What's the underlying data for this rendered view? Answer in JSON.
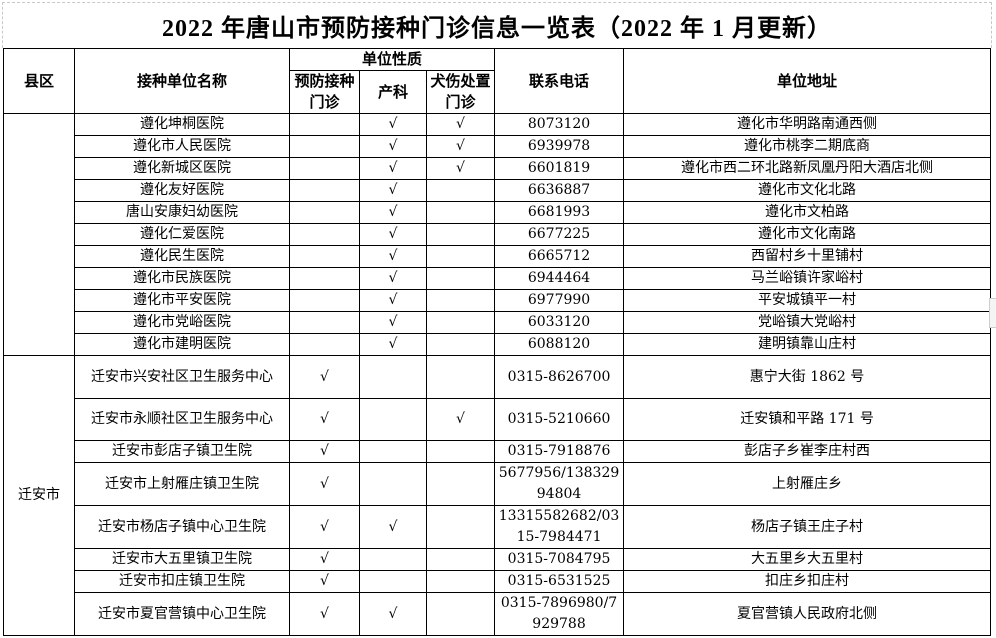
{
  "title": "2022 年唐山市预防接种门诊信息一览表（2022 年 1 月更新）",
  "headers": {
    "county": "县区",
    "name": "接种单位名称",
    "nature": "单位性质",
    "prevent": "预防接种门诊",
    "obstetrics": "产科",
    "dog_bite": "犬伤处置门诊",
    "phone": "联系电话",
    "address": "单位地址"
  },
  "check_mark": "√",
  "groups": [
    {
      "county": "",
      "rows": [
        {
          "name": "遵化坤桐医院",
          "prevent": false,
          "obstetrics": true,
          "dog_bite": true,
          "phone": "8073120",
          "address": "遵化市华明路南通西侧"
        },
        {
          "name": "遵化市人民医院",
          "prevent": false,
          "obstetrics": true,
          "dog_bite": true,
          "phone": "6939978",
          "address": "遵化市桃李二期底商"
        },
        {
          "name": "遵化新城区医院",
          "prevent": false,
          "obstetrics": true,
          "dog_bite": true,
          "phone": "6601819",
          "address": "遵化市西二环北路新凤凰丹阳大酒店北侧"
        },
        {
          "name": "遵化友好医院",
          "prevent": false,
          "obstetrics": true,
          "dog_bite": false,
          "phone": "6636887",
          "address": "遵化市文化北路"
        },
        {
          "name": "唐山安康妇幼医院",
          "prevent": false,
          "obstetrics": true,
          "dog_bite": false,
          "phone": "6681993",
          "address": "遵化市文柏路"
        },
        {
          "name": "遵化仁爱医院",
          "prevent": false,
          "obstetrics": true,
          "dog_bite": false,
          "phone": "6677225",
          "address": "遵化市文化南路"
        },
        {
          "name": "遵化民生医院",
          "prevent": false,
          "obstetrics": true,
          "dog_bite": false,
          "phone": "6665712",
          "address": "西留村乡十里铺村"
        },
        {
          "name": "遵化市民族医院",
          "prevent": false,
          "obstetrics": true,
          "dog_bite": false,
          "phone": "6944464",
          "address": "马兰峪镇许家峪村"
        },
        {
          "name": "遵化市平安医院",
          "prevent": false,
          "obstetrics": true,
          "dog_bite": false,
          "phone": "6977990",
          "address": "平安城镇平一村"
        },
        {
          "name": "遵化市党峪医院",
          "prevent": false,
          "obstetrics": true,
          "dog_bite": false,
          "phone": "6033120",
          "address": "党峪镇大党峪村"
        },
        {
          "name": "遵化市建明医院",
          "prevent": false,
          "obstetrics": true,
          "dog_bite": false,
          "phone": "6088120",
          "address": "建明镇靠山庄村"
        }
      ]
    },
    {
      "county": "迁安市",
      "rows": [
        {
          "name": "迁安市兴安社区卫生服务中心",
          "prevent": true,
          "obstetrics": false,
          "dog_bite": false,
          "phone": "0315-8626700",
          "address": "惠宁大街 1862 号"
        },
        {
          "name": "迁安市永顺社区卫生服务中心",
          "prevent": true,
          "obstetrics": false,
          "dog_bite": true,
          "phone": "0315-5210660",
          "address": "迁安镇和平路 171 号"
        },
        {
          "name": "迁安市彭店子镇卫生院",
          "prevent": true,
          "obstetrics": false,
          "dog_bite": false,
          "phone": "0315-7918876",
          "address": "彭店子乡崔李庄村西"
        },
        {
          "name": "迁安市上射雁庄镇卫生院",
          "prevent": true,
          "obstetrics": false,
          "dog_bite": false,
          "phone": "5677956/13832994804",
          "address": "上射雁庄乡"
        },
        {
          "name": "迁安市杨店子镇中心卫生院",
          "prevent": true,
          "obstetrics": true,
          "dog_bite": false,
          "phone": "13315582682/0315-7984471",
          "address": "杨店子镇王庄子村"
        },
        {
          "name": "迁安市大五里镇卫生院",
          "prevent": true,
          "obstetrics": false,
          "dog_bite": false,
          "phone": "0315-7084795",
          "address": "大五里乡大五里村"
        },
        {
          "name": "迁安市扣庄镇卫生院",
          "prevent": true,
          "obstetrics": false,
          "dog_bite": false,
          "phone": "0315-6531525",
          "address": "扣庄乡扣庄村"
        },
        {
          "name": "迁安市夏官营镇中心卫生院",
          "prevent": true,
          "obstetrics": true,
          "dog_bite": false,
          "phone": "0315-7896980/7929788",
          "address": "夏官营镇人民政府北侧"
        }
      ]
    }
  ]
}
